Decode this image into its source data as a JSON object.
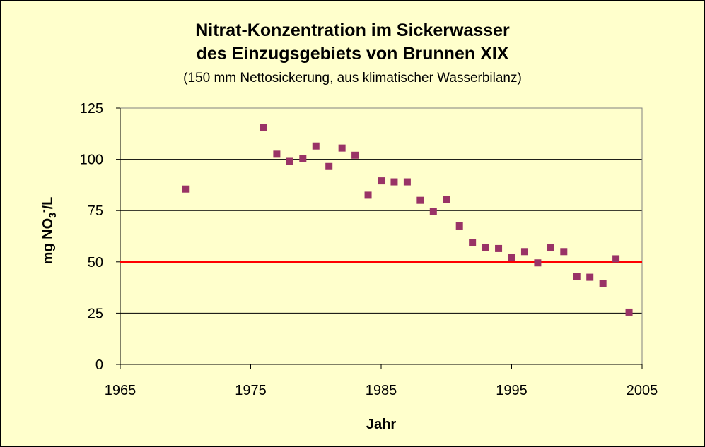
{
  "chart_data": {
    "type": "scatter",
    "title_line1": "Nitrat-Konzentration im Sickerwasser",
    "title_line2": "des Einzugsgebiets von Brunnen XIX",
    "subtitle": "(150 mm Nettosickerung, aus klimatischer Wasserbilanz)",
    "xlabel": "Jahr",
    "ylabel_main": "mg NO",
    "ylabel_sub": "3",
    "ylabel_sup": "-",
    "ylabel_tail": "/L",
    "xlim": [
      1965,
      2005
    ],
    "ylim": [
      0,
      125
    ],
    "xticks": [
      1965,
      1975,
      1985,
      1995,
      2005
    ],
    "yticks": [
      0,
      25,
      50,
      75,
      100,
      125
    ],
    "grid": "horizontal",
    "reference_line": {
      "y": 50,
      "color": "#ff0000"
    },
    "marker_color": "#993366",
    "series": [
      {
        "x": [
          1970,
          1976,
          1977,
          1978,
          1979,
          1980,
          1981,
          1982,
          1983,
          1984,
          1985,
          1986,
          1987,
          1988,
          1989,
          1990,
          1991,
          1992,
          1993,
          1994,
          1995,
          1996,
          1997,
          1998,
          1999,
          2000,
          2001,
          2002,
          2003,
          2004
        ],
        "y": [
          85.5,
          115.5,
          102.5,
          99,
          100.5,
          106.5,
          96.5,
          105.5,
          102,
          82.5,
          89.5,
          89,
          89,
          80,
          74.5,
          80.5,
          67.5,
          59.5,
          57,
          56.5,
          52,
          55,
          49.5,
          57,
          55,
          43,
          42.5,
          39.5,
          51.5,
          25.5
        ]
      }
    ]
  }
}
